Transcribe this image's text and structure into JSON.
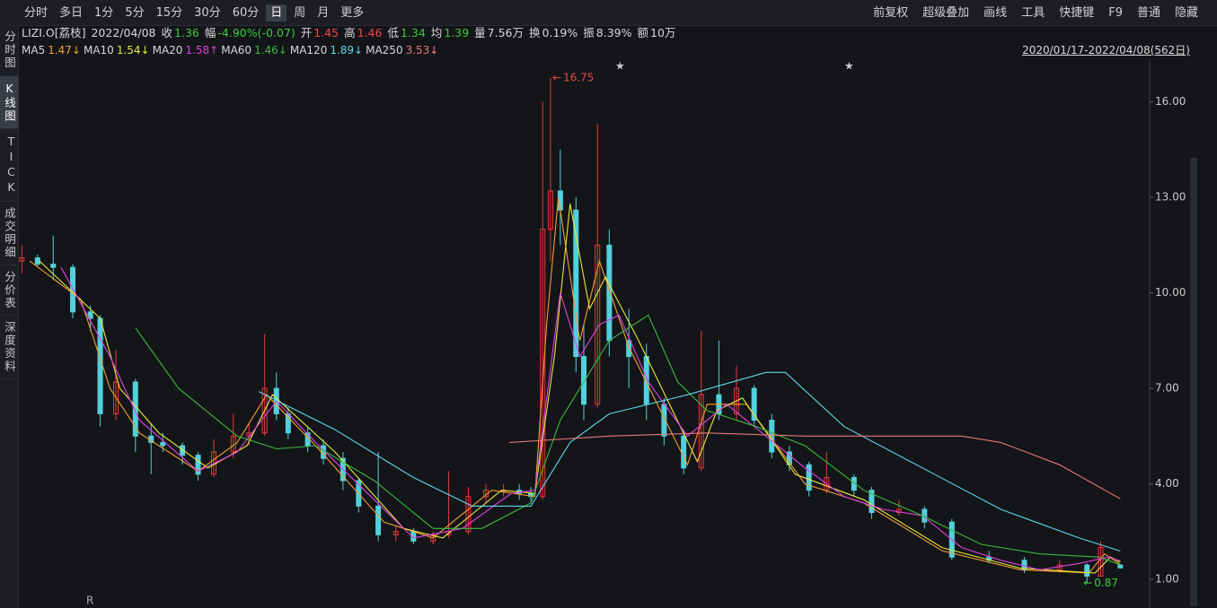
{
  "toolbar": {
    "left": [
      "分时",
      "多日",
      "1分",
      "5分",
      "15分",
      "30分",
      "60分",
      "日",
      "周",
      "月",
      "更多"
    ],
    "active": 7,
    "right": [
      "前复权",
      "超级叠加",
      "画线",
      "工具",
      "快捷键",
      "F9",
      "普通",
      "隐藏"
    ]
  },
  "info": {
    "symbol": "LIZI.O[荔枝]",
    "date": "2022/04/08",
    "fields": [
      {
        "k": "收",
        "v": "1.36",
        "c": "#3cc83c"
      },
      {
        "k": "幅",
        "v": "-4.90%(-0.07)",
        "c": "#3cc83c"
      },
      {
        "k": "开",
        "v": "1.45",
        "c": "#e84a4a"
      },
      {
        "k": "高",
        "v": "1.46",
        "c": "#e84a4a"
      },
      {
        "k": "低",
        "v": "1.34",
        "c": "#3cc83c"
      },
      {
        "k": "均",
        "v": "1.39",
        "c": "#3cc83c"
      },
      {
        "k": "量",
        "v": "7.56万",
        "c": "#d8d8d8"
      },
      {
        "k": "换",
        "v": "0.19%",
        "c": "#d8d8d8"
      },
      {
        "k": "振",
        "v": "8.39%",
        "c": "#d8d8d8"
      },
      {
        "k": "额",
        "v": "10万",
        "c": "#d8d8d8"
      }
    ],
    "range": "2020/01/17-2022/04/08(562日)"
  },
  "sidebar": [
    "分时图",
    "K线图",
    "TICK",
    "成交明细",
    "分价表",
    "深度资料"
  ],
  "sidebar_active": 1,
  "chart_data": {
    "type": "candlestick",
    "up_color": "#e83a3a",
    "down_color": "#52d0dd",
    "x": [
      0,
      8,
      16,
      26,
      35,
      40,
      48,
      58,
      66,
      72,
      82,
      90,
      98,
      108,
      116,
      124,
      130,
      136,
      146,
      154,
      164,
      172,
      182,
      191,
      200,
      210,
      218,
      228,
      237,
      246,
      254,
      260,
      266,
      270,
      275,
      283,
      287,
      294,
      300,
      310,
      319,
      328,
      338,
      347,
      356,
      365,
      374,
      383,
      392,
      402,
      411,
      425,
      434,
      448,
      461,
      475,
      494,
      512,
      530,
      544,
      551,
      561
    ],
    "open": [
      11.0,
      11.1,
      10.9,
      10.8,
      9.4,
      9.2,
      6.2,
      7.2,
      5.5,
      5.3,
      5.2,
      4.9,
      4.3,
      5.0,
      5.5,
      5.6,
      7.0,
      6.2,
      5.6,
      5.2,
      4.8,
      4.1,
      3.3,
      2.4,
      2.5,
      2.2,
      2.4,
      2.5,
      3.6,
      3.8,
      3.8,
      3.7,
      3.6,
      12.0,
      13.2,
      12.6,
      8.0,
      6.5,
      11.5,
      8.5,
      8.0,
      6.5,
      5.5,
      4.5,
      6.8,
      6.2,
      7.0,
      6.0,
      5.0,
      4.6,
      3.8,
      4.2,
      3.8,
      3.1,
      3.2,
      2.8,
      1.7,
      1.6,
      1.3,
      1.45,
      1.1,
      1.45
    ],
    "high": [
      11.5,
      11.2,
      11.8,
      10.9,
      9.6,
      9.3,
      8.2,
      7.3,
      5.9,
      5.6,
      5.3,
      5.0,
      5.4,
      6.2,
      5.9,
      8.7,
      7.5,
      6.4,
      5.8,
      5.4,
      5.0,
      4.2,
      5.0,
      2.7,
      2.6,
      2.5,
      4.4,
      3.9,
      4.0,
      4.0,
      4.0,
      3.9,
      16.0,
      16.75,
      14.5,
      13.0,
      9.0,
      15.3,
      12.0,
      9.5,
      8.4,
      6.7,
      5.7,
      8.8,
      8.5,
      7.7,
      7.1,
      6.2,
      5.2,
      4.7,
      5.0,
      4.3,
      3.9,
      3.5,
      3.3,
      2.9,
      1.9,
      1.7,
      1.6,
      1.5,
      2.2,
      1.46
    ],
    "low": [
      10.6,
      10.8,
      10.4,
      9.2,
      8.8,
      5.8,
      6.0,
      5.0,
      4.3,
      5.0,
      4.6,
      4.1,
      4.2,
      4.8,
      5.2,
      5.5,
      6.0,
      5.4,
      5.0,
      4.6,
      3.8,
      3.1,
      2.2,
      2.2,
      2.1,
      2.1,
      2.3,
      2.4,
      3.4,
      3.6,
      3.5,
      3.4,
      3.5,
      11.0,
      11.5,
      7.5,
      6.0,
      6.4,
      8.0,
      7.0,
      6.0,
      5.2,
      4.3,
      4.4,
      6.0,
      6.0,
      5.8,
      4.8,
      4.4,
      3.6,
      3.7,
      3.6,
      2.9,
      3.0,
      2.6,
      1.6,
      1.5,
      1.2,
      1.2,
      0.87,
      1.1,
      1.34
    ],
    "close": [
      11.1,
      10.9,
      10.8,
      9.4,
      9.2,
      6.2,
      7.2,
      5.5,
      5.3,
      5.2,
      4.9,
      4.3,
      5.0,
      5.5,
      5.6,
      7.0,
      6.2,
      5.6,
      5.2,
      4.8,
      4.1,
      3.3,
      2.4,
      2.5,
      2.2,
      2.4,
      2.5,
      3.6,
      3.8,
      3.8,
      3.7,
      3.6,
      12.0,
      13.2,
      12.6,
      8.0,
      6.5,
      11.5,
      8.5,
      8.0,
      6.5,
      5.5,
      4.5,
      6.8,
      6.2,
      7.0,
      6.0,
      5.0,
      4.6,
      3.8,
      4.2,
      3.8,
      3.1,
      3.2,
      2.8,
      1.7,
      1.6,
      1.3,
      1.45,
      1.1,
      2.0,
      1.36
    ],
    "series": [
      {
        "name": "MA5",
        "label": "1.47↓",
        "color": "#f0a030",
        "x": [
          4,
          30,
          45,
          60,
          90,
          110,
          125,
          150,
          185,
          210,
          240,
          262,
          268,
          274,
          285,
          295,
          310,
          340,
          350,
          370,
          400,
          430,
          470,
          510,
          545,
          553,
          561
        ],
        "values": [
          11.0,
          9.8,
          7.0,
          5.6,
          4.4,
          5.3,
          6.8,
          5.2,
          2.8,
          2.3,
          3.8,
          3.6,
          9.0,
          13.0,
          8.5,
          11.0,
          8.3,
          4.6,
          6.5,
          6.5,
          4.0,
          3.4,
          1.9,
          1.3,
          1.2,
          1.8,
          1.47
        ]
      },
      {
        "name": "MA10",
        "label": "1.54↓",
        "color": "#e8e83c",
        "x": [
          9,
          40,
          50,
          70,
          95,
          115,
          128,
          160,
          195,
          215,
          245,
          262,
          272,
          280,
          290,
          298,
          315,
          345,
          355,
          368,
          395,
          430,
          470,
          510,
          548,
          556,
          561
        ],
        "values": [
          11.0,
          9.2,
          7.0,
          5.6,
          4.5,
          5.2,
          6.8,
          5.0,
          2.6,
          2.3,
          3.8,
          3.7,
          8.0,
          12.8,
          9.5,
          10.5,
          8.5,
          4.7,
          6.3,
          6.7,
          4.3,
          3.5,
          2.0,
          1.35,
          1.2,
          1.7,
          1.54
        ]
      },
      {
        "name": "MA20",
        "label": "1.58↑",
        "color": "#e040e0",
        "x": [
          20,
          45,
          60,
          90,
          110,
          130,
          150,
          175,
          200,
          225,
          250,
          262,
          275,
          285,
          295,
          305,
          320,
          340,
          360,
          380,
          400,
          420,
          440,
          460,
          480,
          500,
          520,
          540,
          555,
          561
        ],
        "values": [
          10.8,
          8.0,
          6.0,
          4.4,
          5.0,
          6.6,
          5.3,
          3.8,
          2.3,
          2.6,
          3.7,
          3.8,
          10.0,
          8.0,
          9.0,
          9.3,
          7.2,
          5.5,
          6.5,
          5.5,
          4.5,
          3.6,
          3.2,
          3.0,
          2.0,
          1.6,
          1.3,
          1.5,
          1.7,
          1.58
        ]
      },
      {
        "name": "MA60",
        "label": "1.46↓",
        "color": "#3cb83c",
        "x": [
          58,
          80,
          110,
          130,
          150,
          180,
          210,
          235,
          260,
          275,
          300,
          320,
          335,
          350,
          375,
          400,
          430,
          460,
          490,
          520,
          550,
          561
        ],
        "values": [
          8.9,
          7.0,
          5.5,
          5.1,
          5.2,
          4.1,
          2.6,
          2.6,
          3.4,
          6.0,
          8.5,
          9.3,
          7.2,
          6.3,
          5.8,
          5.2,
          3.8,
          3.0,
          2.1,
          1.8,
          1.7,
          1.46
        ]
      },
      {
        "name": "MA120",
        "label": "1.89↓",
        "color": "#5cd8e8",
        "x": [
          121,
          160,
          200,
          230,
          260,
          280,
          300,
          340,
          380,
          390,
          420,
          460,
          500,
          540,
          561
        ],
        "values": [
          6.9,
          5.7,
          4.2,
          3.3,
          3.3,
          5.3,
          6.2,
          6.8,
          7.5,
          7.5,
          5.8,
          4.5,
          3.2,
          2.3,
          1.89
        ]
      },
      {
        "name": "MA250",
        "label": "3.53↓",
        "color": "#e87878",
        "x": [
          249,
          300,
          350,
          400,
          450,
          480,
          500,
          530,
          561
        ],
        "values": [
          5.3,
          5.5,
          5.6,
          5.5,
          5.5,
          5.5,
          5.3,
          4.6,
          3.53
        ]
      }
    ],
    "high_mark": 16.75,
    "low_mark": 0.87,
    "xlim": [
      -2,
      576
    ],
    "ylim": [
      0.1,
      17.34
    ],
    "yticks": [
      {
        "value": 1,
        "label": "1.00"
      },
      {
        "value": 4,
        "label": "4.00"
      },
      {
        "value": 7,
        "label": "7.00"
      },
      {
        "value": 10,
        "label": "10.00"
      },
      {
        "value": 13,
        "label": "13.00"
      },
      {
        "value": 16,
        "label": "16.00"
      }
    ]
  }
}
